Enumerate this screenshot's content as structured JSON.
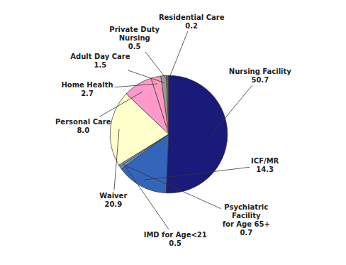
{
  "chart_data": {
    "type": "pie",
    "categories": [
      "Residential Care",
      "Private Duty\nNursing",
      "Adult Day Care",
      "Home Health",
      "Personal Care",
      "Waiver",
      "IMD for Age<21",
      "Psychiatric\nFacility\nfor Age 65+",
      "ICF/MR",
      "Nursing Facility"
    ],
    "values": [
      0.2,
      0.5,
      1.5,
      2.7,
      8.0,
      20.9,
      0.5,
      0.7,
      14.3,
      50.7
    ],
    "value_labels": [
      "0.2",
      "0.5",
      "1.5",
      "2.7",
      "8.0",
      "20.9",
      "0.5",
      "0.7",
      "14.3",
      "50.7"
    ],
    "colors": [
      "#993366",
      "#996677",
      "#999999",
      "#ff99bb",
      "#ff99cc",
      "#ffffcc",
      "#9999cc",
      "#6699cc",
      "#3366bb",
      "#1a1a7a"
    ],
    "data_labels": true
  }
}
